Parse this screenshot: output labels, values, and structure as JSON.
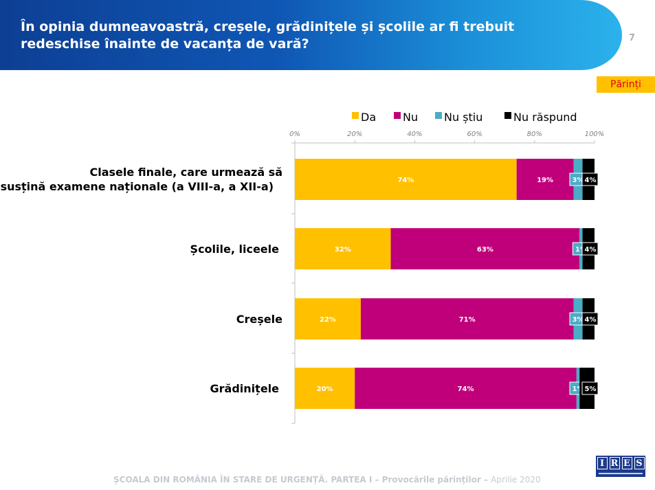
{
  "header": {
    "title": "În opinia dumneavoastră, creșele, grădinițele și școlile ar fi trebuit redeschise înainte de vacanța de vară?",
    "page_number": "7"
  },
  "badge": "Părinți",
  "colors": {
    "da": "#ffc000",
    "nu": "#c0007a",
    "nu_stiu": "#4bacc6",
    "nu_raspund": "#000000",
    "header_dark": "#0d3f94",
    "header_light": "#2bb2ec"
  },
  "chart_data": {
    "type": "bar",
    "orientation": "horizontal",
    "stacked": true,
    "title": "",
    "xlabel": "",
    "ylabel": "",
    "xlim": [
      0,
      100
    ],
    "x_ticks": [
      "0%",
      "20%",
      "40%",
      "60%",
      "80%",
      "100%"
    ],
    "legend_position": "top",
    "categories": [
      "Clasele finale, care urmează să susțină examene naționale (a VIII-a, a XII-a)",
      "Școlile, liceele",
      "Creșele",
      "Grădinițele"
    ],
    "series": [
      {
        "name": "Da",
        "color": "#ffc000",
        "values": [
          74,
          32,
          22,
          20
        ]
      },
      {
        "name": "Nu",
        "color": "#c0007a",
        "values": [
          19,
          63,
          71,
          74
        ]
      },
      {
        "name": "Nu știu",
        "color": "#4bacc6",
        "values": [
          3,
          1,
          3,
          1
        ]
      },
      {
        "name": "Nu răspund",
        "color": "#000000",
        "values": [
          4,
          4,
          4,
          5
        ]
      }
    ]
  },
  "footer": {
    "text_bold": "ȘCOALA DIN ROMÂNIA ÎN STARE DE URGENȚĂ. PARTEA I – Provocările părinților –",
    "text_light": "Aprilie 2020"
  },
  "logo": {
    "letters": [
      "I",
      "R",
      "E",
      "S"
    ]
  }
}
